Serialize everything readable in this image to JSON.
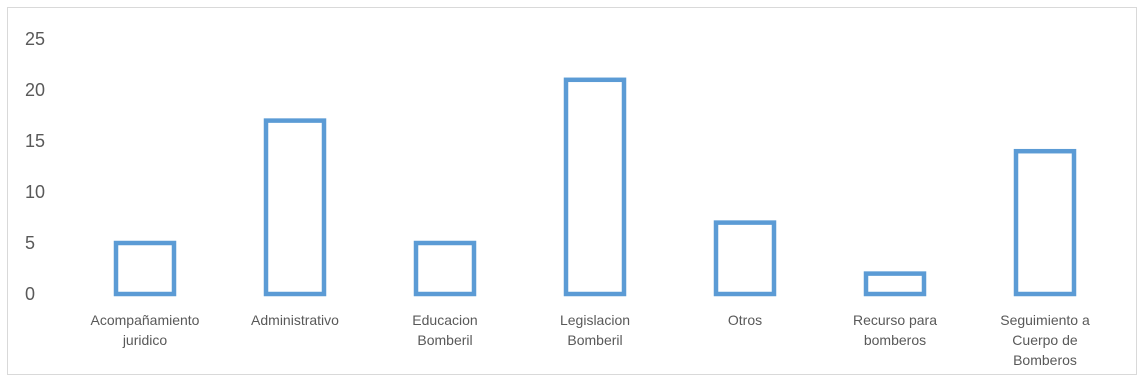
{
  "chart_data": {
    "type": "bar",
    "title": "",
    "xlabel": "",
    "ylabel": "",
    "ylim": [
      0,
      25
    ],
    "yticks": [
      0,
      5,
      10,
      15,
      20,
      25
    ],
    "grid": false,
    "legend": "none",
    "bar_style": "outline",
    "bar_color": "#5b9bd5",
    "categories": [
      [
        "Acompañamiento",
        "juridico"
      ],
      [
        "Administrativo"
      ],
      [
        "Educacion",
        "Bomberil"
      ],
      [
        "Legislacion",
        "Bomberil"
      ],
      [
        "Otros"
      ],
      [
        "Recurso para",
        "bomberos"
      ],
      [
        "Seguimiento a",
        "Cuerpo de",
        "Bomberos"
      ]
    ],
    "values": [
      5,
      17,
      5,
      21,
      7,
      2,
      14
    ]
  }
}
